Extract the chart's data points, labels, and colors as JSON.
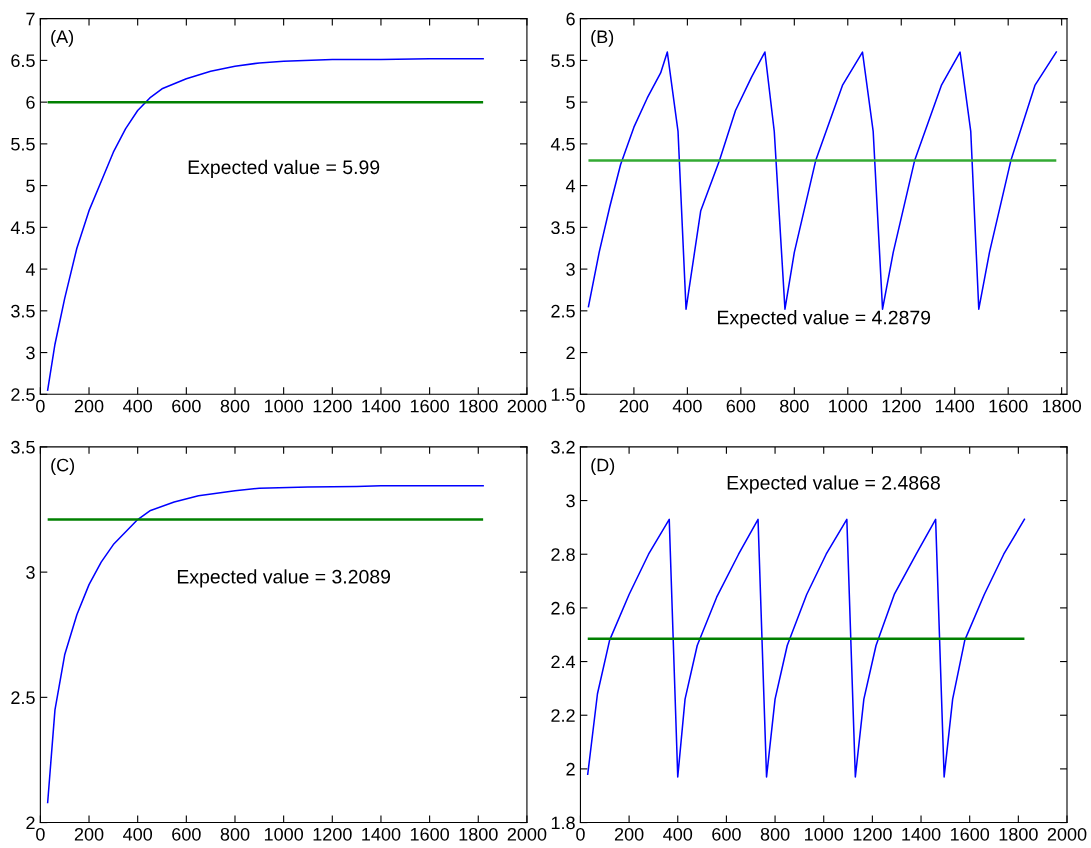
{
  "chart_data": [
    {
      "type": "line",
      "annotations": [
        "(A)",
        "Expected value = 5.99"
      ],
      "xlim": [
        0,
        2000
      ],
      "xticks": [
        0,
        200,
        400,
        600,
        800,
        1000,
        1200,
        1400,
        1600,
        1800,
        2000
      ],
      "ylim": [
        2.5,
        7
      ],
      "yticks": [
        2.5,
        3,
        3.5,
        4,
        4.5,
        5,
        5.5,
        6,
        6.5,
        7
      ],
      "series": [
        {
          "color": "#0000ff",
          "x": [
            30,
            60,
            100,
            150,
            200,
            250,
            300,
            350,
            400,
            450,
            500,
            600,
            700,
            800,
            900,
            1000,
            1200,
            1400,
            1600,
            1820
          ],
          "values": [
            2.55,
            3.1,
            3.65,
            4.25,
            4.7,
            5.05,
            5.4,
            5.68,
            5.9,
            6.05,
            6.16,
            6.28,
            6.37,
            6.43,
            6.47,
            6.49,
            6.51,
            6.51,
            6.52,
            6.52
          ]
        }
      ],
      "ref_lines": [
        {
          "axis": "y",
          "value": 6.0,
          "color": "#008000"
        }
      ]
    },
    {
      "type": "line",
      "annotations": [
        "(B)",
        "Expected value = 4.2879"
      ],
      "xlim": [
        0,
        1820
      ],
      "xticks": [
        0,
        200,
        400,
        600,
        800,
        1000,
        1200,
        1400,
        1600,
        1800
      ],
      "ylim": [
        1.5,
        6
      ],
      "yticks": [
        1.5,
        2,
        2.5,
        3,
        3.5,
        4,
        4.5,
        5,
        5.5,
        6
      ],
      "series": [
        {
          "color": "#0000ff",
          "x": [
            30,
            70,
            110,
            150,
            200,
            250,
            300,
            325,
            365,
            395,
            450,
            520,
            580,
            640,
            690,
            725,
            765,
            800,
            880,
            980,
            1055,
            1095,
            1130,
            1170,
            1250,
            1350,
            1420,
            1460,
            1490,
            1530,
            1610,
            1700,
            1780
          ],
          "values": [
            2.55,
            3.2,
            3.75,
            4.25,
            4.7,
            5.05,
            5.35,
            5.6,
            4.65,
            2.52,
            3.7,
            4.3,
            4.9,
            5.3,
            5.6,
            4.65,
            2.52,
            3.2,
            4.3,
            5.2,
            5.6,
            4.65,
            2.52,
            3.2,
            4.3,
            5.2,
            5.6,
            4.65,
            2.52,
            3.2,
            4.3,
            5.2,
            5.6
          ]
        }
      ],
      "ref_lines": [
        {
          "axis": "y",
          "value": 4.3,
          "color": "#33aa33"
        }
      ]
    },
    {
      "type": "line",
      "annotations": [
        "(C)",
        "Expected value = 3.2089"
      ],
      "xlim": [
        0,
        2000
      ],
      "xticks": [
        0,
        200,
        400,
        600,
        800,
        1000,
        1200,
        1400,
        1600,
        1800,
        2000
      ],
      "ylim": [
        2,
        3.5
      ],
      "yticks": [
        2,
        2.5,
        3,
        3.5
      ],
      "series": [
        {
          "color": "#0000ff",
          "x": [
            30,
            60,
            100,
            150,
            200,
            250,
            300,
            350,
            400,
            450,
            550,
            650,
            800,
            900,
            1100,
            1300,
            1400,
            1820
          ],
          "values": [
            2.08,
            2.45,
            2.67,
            2.83,
            2.95,
            3.04,
            3.11,
            3.16,
            3.21,
            3.245,
            3.28,
            3.305,
            3.325,
            3.335,
            3.34,
            3.342,
            3.345,
            3.345
          ]
        }
      ],
      "ref_lines": [
        {
          "axis": "y",
          "value": 3.21,
          "color": "#008000"
        }
      ]
    },
    {
      "type": "line",
      "annotations": [
        "(D)",
        "Expected value = 2.4868"
      ],
      "xlim": [
        0,
        2000
      ],
      "xticks": [
        0,
        200,
        400,
        600,
        800,
        1000,
        1200,
        1400,
        1600,
        1800,
        2000
      ],
      "ylim": [
        1.8,
        3.2
      ],
      "yticks": [
        1.8,
        2,
        2.2,
        2.4,
        2.6,
        2.8,
        3,
        3.2
      ],
      "series": [
        {
          "color": "#0000ff",
          "x": [
            30,
            70,
            120,
            200,
            280,
            365,
            400,
            430,
            480,
            560,
            650,
            730,
            765,
            800,
            850,
            930,
            1010,
            1095,
            1130,
            1165,
            1215,
            1290,
            1380,
            1460,
            1495,
            1530,
            1580,
            1660,
            1740,
            1825
          ],
          "values": [
            1.98,
            2.28,
            2.48,
            2.65,
            2.8,
            2.93,
            1.97,
            2.26,
            2.46,
            2.64,
            2.8,
            2.93,
            1.97,
            2.26,
            2.46,
            2.65,
            2.8,
            2.93,
            1.97,
            2.26,
            2.46,
            2.65,
            2.8,
            2.93,
            1.97,
            2.26,
            2.48,
            2.65,
            2.8,
            2.93
          ]
        }
      ],
      "ref_lines": [
        {
          "axis": "y",
          "value": 2.485,
          "color": "#008000"
        }
      ]
    }
  ]
}
